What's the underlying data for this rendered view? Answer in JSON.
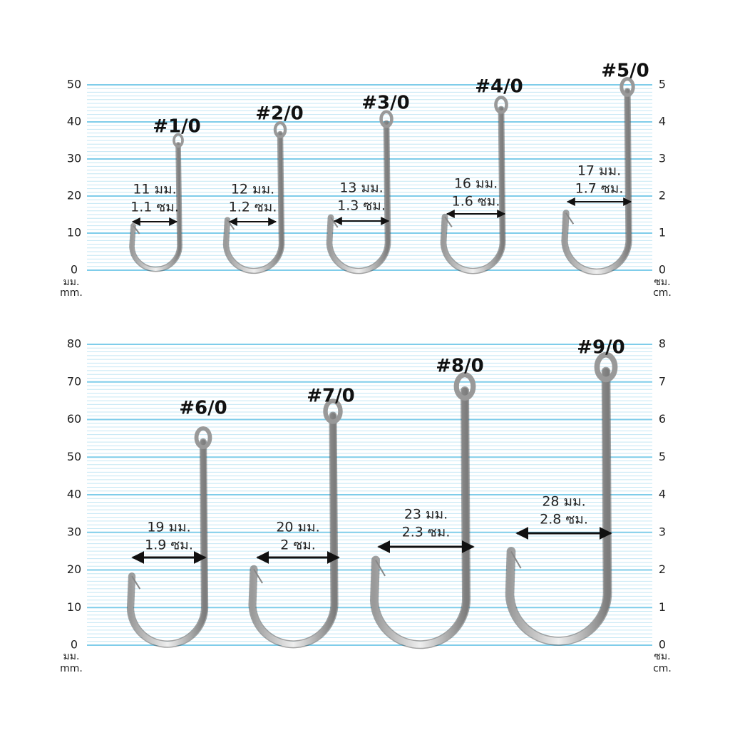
{
  "panels": [
    {
      "left_ticks": [
        0,
        10,
        20,
        30,
        40,
        50
      ],
      "right_ticks": [
        0,
        1,
        2,
        3,
        4,
        5
      ],
      "left_unit": [
        "มม.",
        "mm."
      ],
      "right_unit": [
        "ซม.",
        "cm."
      ],
      "hooks": [
        {
          "label": "#1/0",
          "mm": "11 มม.",
          "cm": "1.1 ซม."
        },
        {
          "label": "#2/0",
          "mm": "12 มม.",
          "cm": "1.2 ซม."
        },
        {
          "label": "#3/0",
          "mm": "13 มม.",
          "cm": "1.3 ซม."
        },
        {
          "label": "#4/0",
          "mm": "16 มม.",
          "cm": "1.6 ซม."
        },
        {
          "label": "#5/0",
          "mm": "17 มม.",
          "cm": "1.7 ซม."
        }
      ]
    },
    {
      "left_ticks": [
        0,
        10,
        20,
        30,
        40,
        50,
        60,
        70,
        80
      ],
      "right_ticks": [
        0,
        1,
        2,
        3,
        4,
        5,
        6,
        7,
        8
      ],
      "left_unit": [
        "มม.",
        "mm."
      ],
      "right_unit": [
        "ซม.",
        "cm."
      ],
      "hooks": [
        {
          "label": "#6/0",
          "mm": "19 มม.",
          "cm": "1.9 ซม."
        },
        {
          "label": "#7/0",
          "mm": "20 มม.",
          "cm": "2 ซม."
        },
        {
          "label": "#8/0",
          "mm": "23 มม.",
          "cm": "2.3 ซม."
        },
        {
          "label": "#9/0",
          "mm": "28 มม.",
          "cm": "2.8 ซม."
        }
      ]
    }
  ]
}
